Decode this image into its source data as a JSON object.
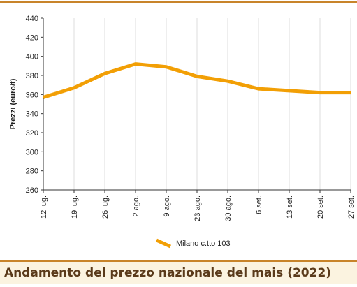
{
  "chart_data": {
    "type": "line",
    "title": "Andamento del prezzo nazionale del mais (2022)",
    "y_label": "Prezzi (euro/t)",
    "categories": [
      "12 lug.",
      "19 lug.",
      "26 lug.",
      "2 ago.",
      "9 ago.",
      "23 ago.",
      "30 ago.",
      "6 set.",
      "13 set.",
      "20 set.",
      "27 set."
    ],
    "series": [
      {
        "name": "Milano c.tto 103",
        "color": "#f29f05",
        "values": [
          357,
          367,
          382,
          392,
          389,
          379,
          374,
          366,
          364,
          362,
          362
        ]
      }
    ],
    "ylim": [
      260,
      440
    ],
    "yticks": [
      260,
      280,
      300,
      320,
      340,
      360,
      380,
      400,
      420,
      440
    ],
    "grid": "x"
  }
}
